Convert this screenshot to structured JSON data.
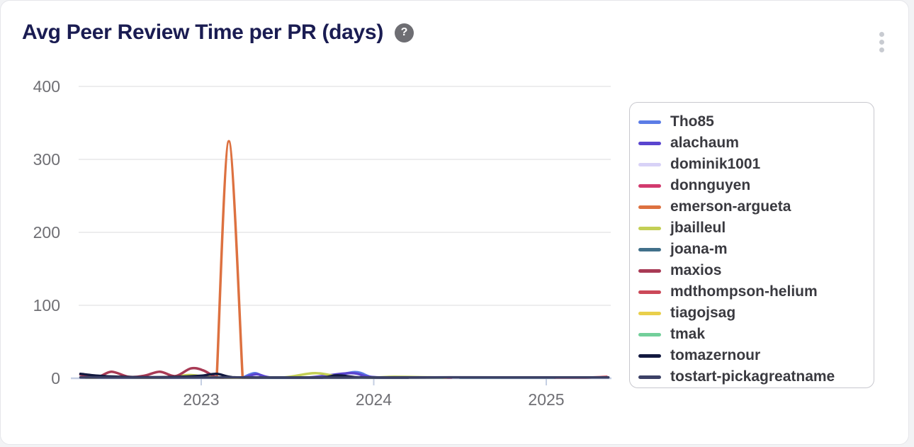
{
  "card": {
    "title": "Avg Peer Review Time per PR (days)",
    "help_glyph": "?"
  },
  "colors": {
    "title": "#1a1c52",
    "axis": "#c5cfe3",
    "grid": "#e7e7e9",
    "tick_label": "#6f6f74",
    "legend_border": "#c8c8ce",
    "legend_text": "#3a3a40",
    "help_bg": "#6e6e73"
  },
  "chart_data": {
    "type": "line",
    "title": "Avg Peer Review Time per PR (days)",
    "xlabel": "",
    "ylabel": "",
    "x_range": [
      2022.3,
      2025.38
    ],
    "ylim": [
      0,
      400
    ],
    "yticks": [
      0,
      100,
      200,
      300,
      400
    ],
    "xticks": [
      2023,
      2024,
      2025
    ],
    "grid": true,
    "legend_position": "right",
    "smooth": true,
    "series": [
      {
        "name": "Tho85",
        "color": "#5b7ce6",
        "points": [
          [
            2023.24,
            0.4
          ],
          [
            2023.31,
            7
          ],
          [
            2023.39,
            0.6
          ],
          [
            2023.55,
            0.3
          ],
          [
            2023.72,
            0.6
          ],
          [
            2023.89,
            8.5
          ],
          [
            2023.99,
            1.5
          ],
          [
            2024.12,
            0.6
          ]
        ]
      },
      {
        "name": "alachaum",
        "color": "#5a45cf",
        "points": [
          [
            2023.25,
            0.3
          ],
          [
            2023.32,
            5.5
          ],
          [
            2023.41,
            0.5
          ],
          [
            2023.6,
            0.3
          ],
          [
            2023.86,
            7
          ],
          [
            2023.96,
            2.5
          ],
          [
            2024.08,
            0.6
          ],
          [
            2024.2,
            0.9
          ],
          [
            2024.3,
            0.4
          ]
        ]
      },
      {
        "name": "dominik1001",
        "color": "#d8d2f7",
        "points": [
          [
            2023.95,
            0.3
          ],
          [
            2024.14,
            1.6
          ],
          [
            2024.32,
            0.3
          ]
        ]
      },
      {
        "name": "donnguyen",
        "color": "#d23a6e",
        "points": [
          [
            2023.5,
            0.3
          ],
          [
            2023.8,
            0.6
          ],
          [
            2024.1,
            0.4
          ],
          [
            2024.45,
            0.6
          ]
        ]
      },
      {
        "name": "emerson-argueta",
        "color": "#dd7140",
        "points": [
          [
            2023.09,
            0.8
          ],
          [
            2023.16,
            325
          ],
          [
            2023.24,
            0.8
          ]
        ]
      },
      {
        "name": "jbailleul",
        "color": "#c3cf55",
        "points": [
          [
            2022.33,
            1
          ],
          [
            2022.48,
            2
          ],
          [
            2022.62,
            0.5
          ],
          [
            2022.8,
            1
          ],
          [
            2022.93,
            4.5
          ],
          [
            2023.05,
            1.5
          ],
          [
            2023.25,
            0.8
          ],
          [
            2023.48,
            1.2
          ],
          [
            2023.66,
            7
          ],
          [
            2023.82,
            1.5
          ],
          [
            2023.98,
            1
          ],
          [
            2024.12,
            2
          ],
          [
            2024.28,
            1.5
          ],
          [
            2024.42,
            0.8
          ]
        ]
      },
      {
        "name": "joana-m",
        "color": "#41708a",
        "points": [
          [
            2024.5,
            0.4
          ],
          [
            2024.8,
            0.7
          ],
          [
            2025.05,
            0.4
          ]
        ]
      },
      {
        "name": "maxios",
        "color": "#a83a55",
        "points": [
          [
            2022.3,
            5
          ],
          [
            2022.4,
            2
          ],
          [
            2022.48,
            9
          ],
          [
            2022.58,
            2
          ],
          [
            2022.67,
            3.5
          ],
          [
            2022.76,
            9
          ],
          [
            2022.85,
            3
          ],
          [
            2022.94,
            13.5
          ],
          [
            2023.01,
            11
          ],
          [
            2023.08,
            2
          ],
          [
            2023.13,
            0.5
          ]
        ]
      },
      {
        "name": "mdthompson-helium",
        "color": "#cb4858",
        "points": [
          [
            2025.05,
            0.4
          ],
          [
            2025.22,
            0.8
          ],
          [
            2025.35,
            2
          ]
        ]
      },
      {
        "name": "tiagojsag",
        "color": "#e9cf4b",
        "points": [
          [
            2022.35,
            0.8
          ],
          [
            2022.52,
            1.5
          ],
          [
            2022.72,
            0.6
          ],
          [
            2022.95,
            2.5
          ],
          [
            2023.1,
            0.8
          ],
          [
            2023.3,
            0.4
          ]
        ]
      },
      {
        "name": "tmak",
        "color": "#72cf9a",
        "points": [
          [
            2023.4,
            0.3
          ],
          [
            2023.9,
            0.6
          ],
          [
            2024.4,
            0.3
          ]
        ]
      },
      {
        "name": "tomazernour",
        "color": "#12183f",
        "points": [
          [
            2022.3,
            6
          ],
          [
            2022.4,
            3.5
          ],
          [
            2022.52,
            2
          ],
          [
            2022.7,
            1.5
          ],
          [
            2022.88,
            2
          ],
          [
            2023.0,
            3.5
          ],
          [
            2023.09,
            6
          ],
          [
            2023.18,
            1.5
          ],
          [
            2023.35,
            0.8
          ],
          [
            2023.55,
            0.8
          ],
          [
            2023.7,
            1
          ],
          [
            2023.79,
            4
          ],
          [
            2023.9,
            1.5
          ],
          [
            2024.05,
            0.8
          ],
          [
            2024.2,
            0.6
          ]
        ]
      },
      {
        "name": "tostart-pickagreatname",
        "color": "#3c4166",
        "points": [
          [
            2022.3,
            1.2
          ],
          [
            2022.8,
            1
          ],
          [
            2023.3,
            1.2
          ],
          [
            2023.8,
            1
          ],
          [
            2024.3,
            1.3
          ],
          [
            2024.8,
            1.2
          ],
          [
            2025.36,
            1.3
          ]
        ]
      }
    ]
  }
}
